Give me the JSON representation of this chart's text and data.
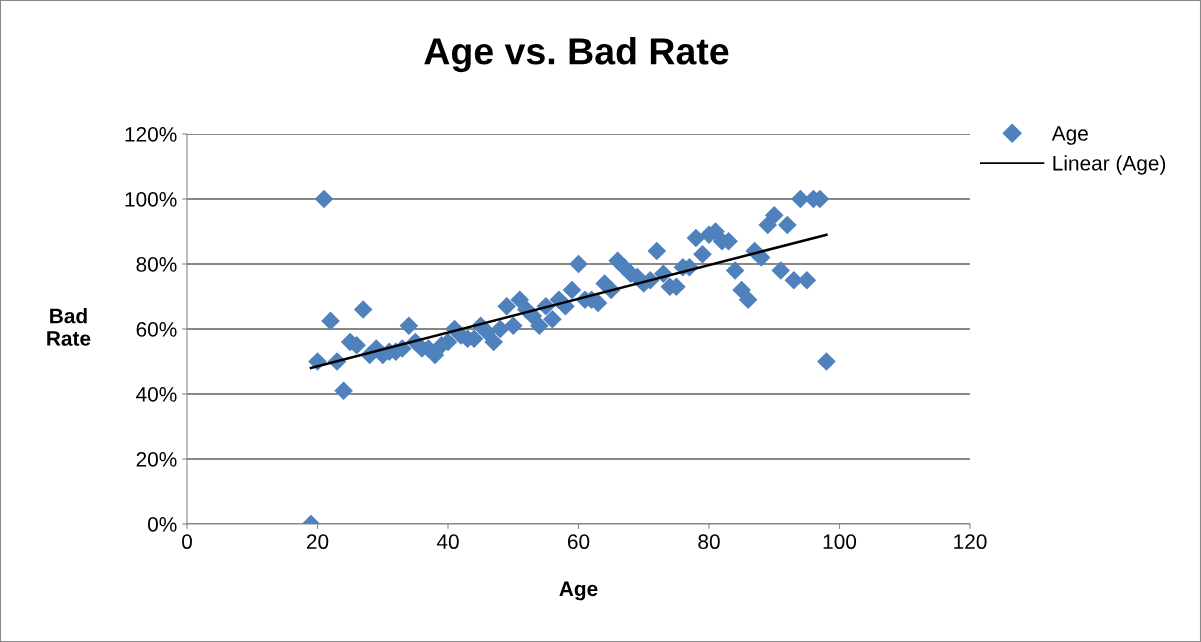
{
  "chart_data": {
    "type": "scatter",
    "title": "Age vs. Bad Rate",
    "xlabel": "Age",
    "ylabel": "Bad\nRate",
    "series": [
      {
        "name": "Age",
        "color": "#4f81bd",
        "marker": "diamond",
        "x": [
          19,
          20,
          21,
          22,
          23,
          24,
          25,
          26,
          27,
          28,
          29,
          30,
          31,
          32,
          33,
          34,
          35,
          36,
          37,
          38,
          39,
          40,
          41,
          42,
          43,
          44,
          45,
          46,
          47,
          48,
          49,
          50,
          51,
          52,
          53,
          54,
          55,
          56,
          57,
          58,
          59,
          60,
          61,
          62,
          63,
          64,
          65,
          66,
          67,
          68,
          69,
          70,
          71,
          72,
          73,
          74,
          75,
          76,
          77,
          78,
          79,
          80,
          81,
          82,
          83,
          84,
          85,
          86,
          87,
          88,
          89,
          90,
          91,
          92,
          93,
          94,
          95,
          96,
          97,
          98
        ],
        "values": [
          0,
          50,
          100,
          62.5,
          50,
          41,
          56,
          55,
          66,
          52,
          54,
          52,
          53,
          53,
          54,
          61,
          56,
          54,
          54,
          52,
          55,
          56,
          60,
          58,
          57,
          57,
          61,
          59,
          56,
          60,
          67,
          61,
          69,
          66,
          64,
          61,
          67,
          63,
          69,
          67,
          72,
          80,
          69,
          69,
          68,
          74,
          72,
          81,
          79,
          77,
          76,
          74,
          75,
          84,
          77,
          73,
          73,
          79,
          79,
          88,
          83,
          89,
          90,
          87,
          87,
          78,
          72,
          69,
          84,
          82,
          92,
          95,
          78,
          92,
          75,
          100,
          75,
          100,
          100,
          50
        ]
      },
      {
        "name": "Linear (Age)",
        "type": "line",
        "color": "#000000",
        "marker": "none",
        "x": [
          19,
          98
        ],
        "values": [
          48,
          89
        ]
      }
    ],
    "xlim": [
      0,
      120
    ],
    "xticks": [
      0,
      20,
      40,
      60,
      80,
      100,
      120
    ],
    "ylim": [
      0,
      120
    ],
    "yticks": [
      {
        "value": 0,
        "label": "0%"
      },
      {
        "value": 20,
        "label": "20%"
      },
      {
        "value": 40,
        "label": "40%"
      },
      {
        "value": 60,
        "label": "60%"
      },
      {
        "value": 80,
        "label": "80%"
      },
      {
        "value": 100,
        "label": "100%"
      },
      {
        "value": 120,
        "label": "120%"
      }
    ],
    "grid": "y",
    "legend": "right"
  }
}
